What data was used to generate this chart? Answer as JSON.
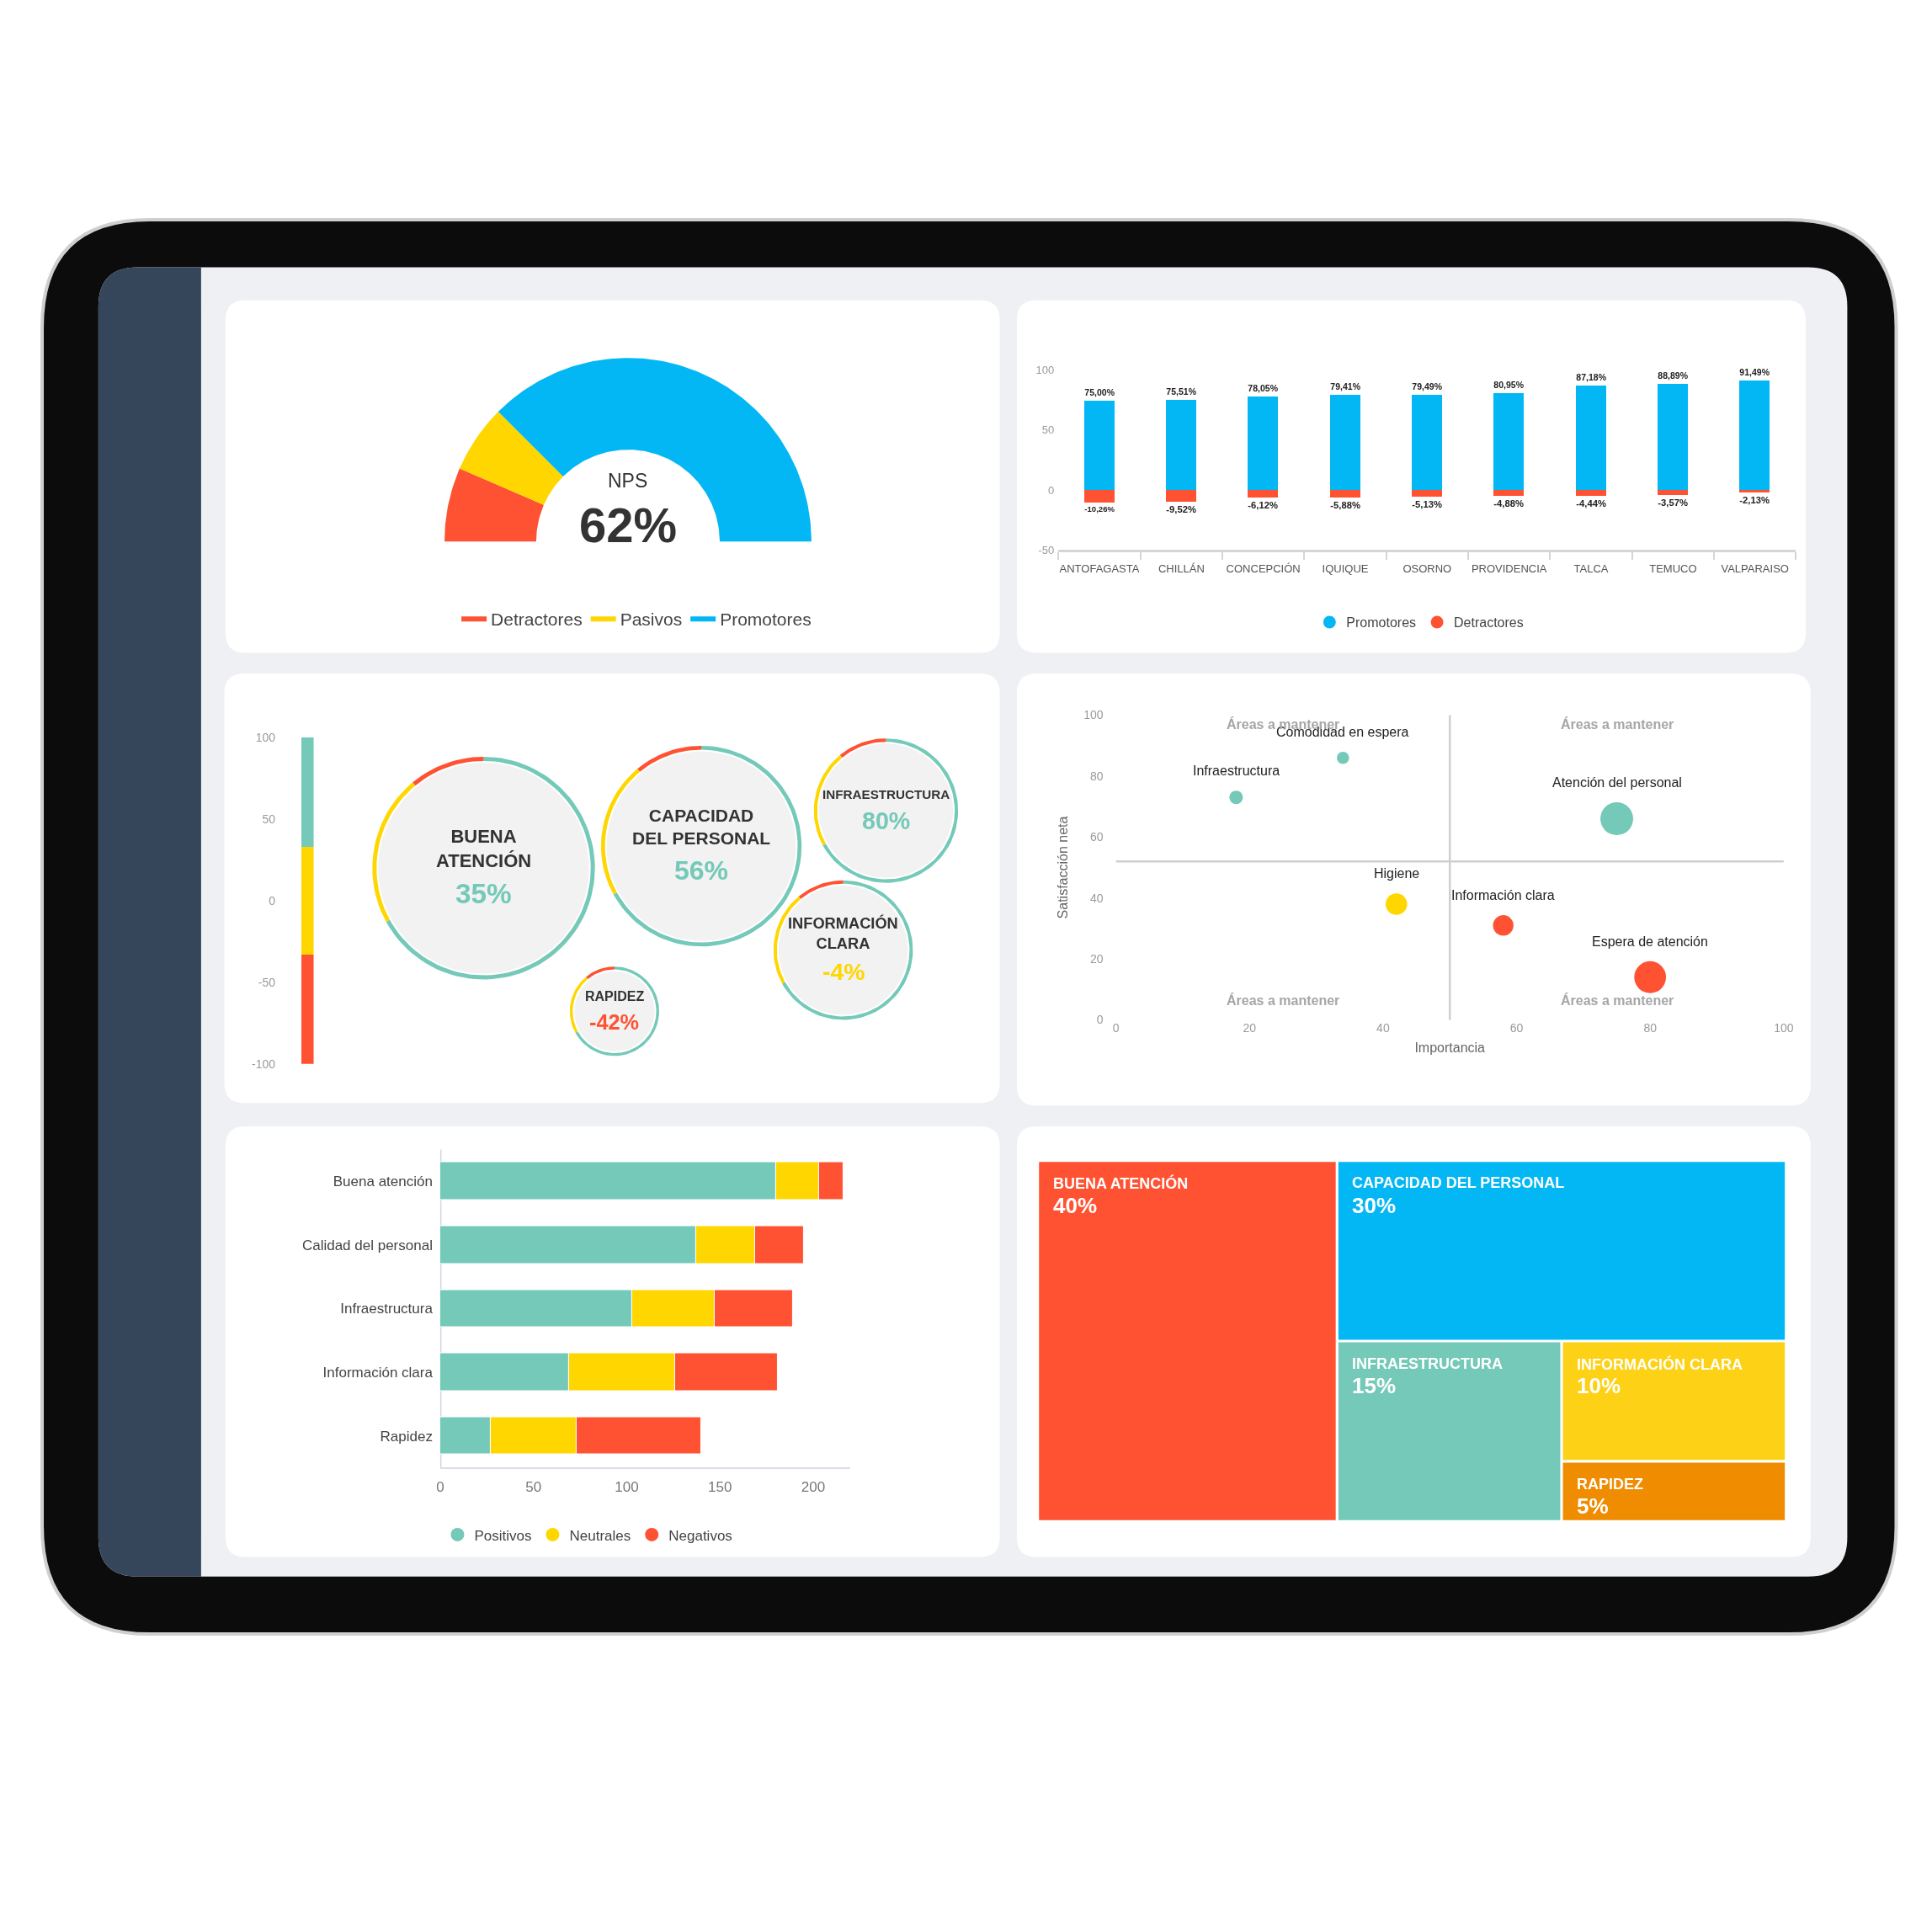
{
  "chart_data": [
    {
      "type": "donut",
      "categories": [
        "Detractores",
        "Pasivos",
        "Promotores"
      ],
      "values": [
        13,
        12,
        75
      ],
      "colors": [
        "#ff5233",
        "#ffd600",
        "#03b7f5"
      ],
      "annotations": [
        "NPS",
        "62%"
      ],
      "legend": "bottom"
    },
    {
      "type": "bar",
      "stacked": true,
      "categories": [
        "ANTOFAGASTA",
        "CHILLÁN",
        "CONCEPCIÓN",
        "IQUIQUE",
        "OSORNO",
        "PROVIDENCIA",
        "TALCA",
        "TEMUCO",
        "VALPARAISO"
      ],
      "series": [
        {
          "name": "Promotores",
          "color": "#03b7f5",
          "values": [
            75.0,
            75.51,
            78.05,
            79.41,
            79.49,
            80.95,
            87.18,
            88.89,
            91.49
          ],
          "value_labels": [
            "75,00%",
            "75,51%",
            "78,05%",
            "79,41%",
            "79,49%",
            "80,95%",
            "87,18%",
            "88,89%",
            "91,49%"
          ]
        },
        {
          "name": "Detractores",
          "color": "#ff5233",
          "values": [
            -10.26,
            -9.52,
            -6.12,
            -5.88,
            -5.13,
            -4.88,
            -4.44,
            -3.57,
            -2.13
          ],
          "value_labels": [
            "-10,26%",
            "-9,52%",
            "-6,12%",
            "-5,88%",
            "-5,13%",
            "-4,88%",
            "-4,44%",
            "-3,57%",
            "-2,13%"
          ]
        }
      ],
      "ylim": [
        -50,
        100
      ],
      "yticks": [
        -50,
        0,
        50,
        100
      ],
      "legend": "bottom"
    },
    {
      "type": "bar",
      "stacked": true,
      "categories": [
        null
      ],
      "series": [
        {
          "color": "#ffd600",
          "values": [
            33
          ]
        },
        {
          "color": "#74c9b8",
          "values": [
            67
          ]
        },
        {
          "color": "#ffd600",
          "values": [
            -33
          ]
        },
        {
          "color": "#ff5233",
          "values": [
            -67
          ]
        }
      ],
      "ylim": [
        -100,
        100
      ],
      "yticks": [
        -100,
        -50,
        0,
        50,
        100
      ]
    },
    {
      "type": "other",
      "categories": [
        "BUENA ATENCIÓN",
        "CAPACIDAD DEL PERSONAL",
        "INFRAESTRUCTURA",
        "INFORMACIÓN CLARA",
        "RAPIDEZ"
      ],
      "values": [
        35,
        56,
        80,
        -4,
        -42
      ],
      "value_labels": [
        "35%",
        "56%",
        "80%",
        "-4%",
        "-42%"
      ]
    },
    {
      "type": "bubble",
      "x": [
        18,
        34,
        42,
        58,
        75,
        80
      ],
      "values": [
        73,
        86,
        38,
        31,
        66,
        14
      ],
      "sizes": [
        0.17,
        0.14,
        0.43,
        0.39,
        1,
        0.94
      ],
      "colors": [
        "#74c9b8",
        "#74c9b8",
        "#ffd600",
        "#ff5233",
        "#74c9b8",
        "#ff5233"
      ],
      "xlim": [
        0,
        100
      ],
      "ylim": [
        0,
        100
      ],
      "xticks": [
        0,
        20,
        40,
        60,
        80,
        100
      ],
      "yticks": [
        0,
        20,
        40,
        60,
        80,
        100
      ],
      "xlabel": "Importancia",
      "ylabel": "Satisfacción neta",
      "ref_lines": [
        {
          "axis": "x",
          "value": 50,
          "color": "#cfcfcf"
        },
        {
          "axis": "y",
          "value": 52,
          "color": "#cfcfcf"
        }
      ],
      "annotations": [
        {
          "text": "Infraestructura",
          "x": 18,
          "y": 73
        },
        {
          "text": "Comodidad en espera",
          "x": 34,
          "y": 86
        },
        {
          "text": "Higiene",
          "x": 42,
          "y": 38
        },
        {
          "text": "Información clara",
          "x": 58,
          "y": 31
        },
        {
          "text": "Atención del personal",
          "x": 75,
          "y": 66
        },
        {
          "text": "Espera de atención",
          "x": 80,
          "y": 14
        },
        "Áreas a mantener",
        "Áreas a mantener",
        "Áreas a mantener",
        "Áreas a mantener"
      ]
    },
    {
      "type": "bar",
      "orientation": "horizontal",
      "stacked": true,
      "categories": [
        "Buena atención",
        "Calidad del personal",
        "Infraestructura",
        "Información clara",
        "Rapidez"
      ],
      "series": [
        {
          "name": "Positivos",
          "color": "#74c9b8",
          "values": [
            180,
            137,
            103,
            69,
            27
          ]
        },
        {
          "name": "Neutrales",
          "color": "#ffd600",
          "values": [
            23,
            32,
            44,
            57,
            46
          ]
        },
        {
          "name": "Negativos",
          "color": "#ff5233",
          "values": [
            13,
            26,
            42,
            55,
            67
          ]
        }
      ],
      "xlim": [
        0,
        220
      ],
      "xticks": [
        0,
        50,
        100,
        150,
        200
      ],
      "legend": "bottom"
    },
    {
      "type": "other",
      "categories": [
        "BUENA ATENCIÓN",
        "CAPACIDAD DEL PERSONAL",
        "INFRAESTRUCTURA",
        "INFORMACIÓN CLARA",
        "RAPIDEZ"
      ],
      "values": [
        40,
        30,
        15,
        10,
        5
      ],
      "value_labels": [
        "40%",
        "30%",
        "15%",
        "10%",
        "5%"
      ],
      "colors": [
        "#ff5233",
        "#03b7f5",
        "#74c9b8",
        "#fcd116",
        "#f08c00"
      ]
    }
  ]
}
